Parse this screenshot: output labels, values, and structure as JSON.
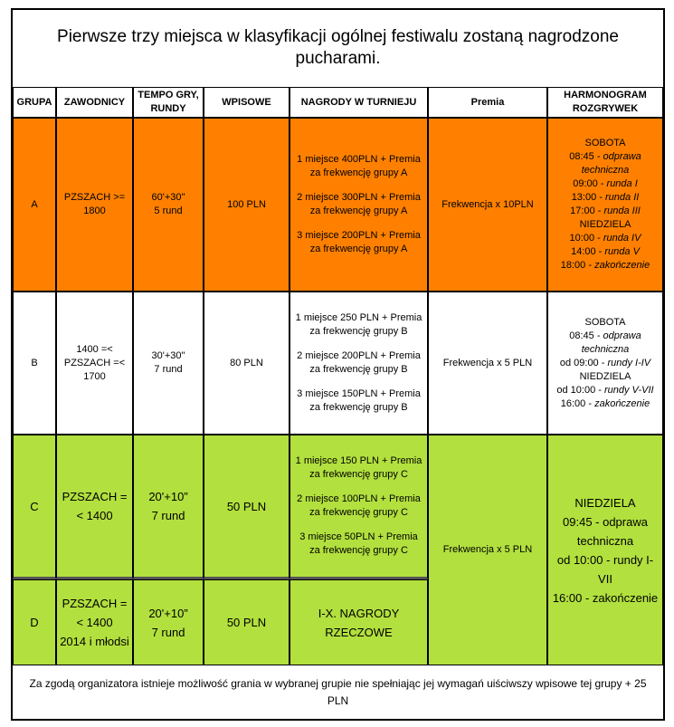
{
  "title": "Pierwsze trzy miejsca w klasyfikacji ogólnej festiwalu zostaną nagrodzone pucharami.",
  "headers": {
    "grupa": "GRUPA",
    "zawodnicy": "ZAWODNICY",
    "tempo": "TEMPO GRY, RUNDY",
    "wpisowe": "WPISOWE",
    "nagrody": "NAGRODY W TURNIEJU",
    "premia": "Premia",
    "harmonogram": "HARMONOGRAM ROZGRYWEK"
  },
  "colors": {
    "group_a": "#ff8000",
    "group_b": "#ffffff",
    "group_cd": "#b2e03e"
  },
  "rows": {
    "a": {
      "grupa": "A",
      "zawodnicy": "PZSZACH >= 1800",
      "tempo": "60'+30\"",
      "rundy": "5 rund",
      "wpisowe": "100 PLN",
      "prize1": "1 miejsce 400PLN + Premia za frekwencję grupy A",
      "prize2": "2 miejsce 300PLN + Premia za frekwencję grupy A",
      "prize3": "3 miejsce 200PLN + Premia za frekwencję grupy A",
      "premia": "Frekwencja x 10PLN",
      "sched": {
        "l1": "SOBOTA",
        "l2a": "08:45 - ",
        "l2b": "odprawa",
        "l3": "techniczna",
        "l4a": "09:00 - ",
        "l4b": "runda I",
        "l5a": "13:00 - ",
        "l5b": "runda II",
        "l6a": "17:00 - ",
        "l6b": "runda III",
        "l7": "NIEDZIELA",
        "l8a": "10:00 - ",
        "l8b": "runda IV",
        "l9a": "14:00 - ",
        "l9b": "runda V",
        "l10a": "18:00 - ",
        "l10b": "zakończenie"
      }
    },
    "b": {
      "grupa": "B",
      "zawodnicy1": "1400 =<",
      "zawodnicy2": "PZSZACH =<",
      "zawodnicy3": "1700",
      "tempo": "30'+30\"",
      "rundy": "7 rund",
      "wpisowe": "80 PLN",
      "prize1": "1 miejsce 250 PLN + Premia za frekwencję grupy B",
      "prize2": "2 miejsce 200PLN + Premia za frekwencję grupy B",
      "prize3": "3 miejsce 150PLN + Premia za frekwencję grupy B",
      "premia": "Frekwencja x 5 PLN",
      "sched": {
        "l1": "SOBOTA",
        "l2a": "08:45 - ",
        "l2b": "odprawa",
        "l3": "techniczna",
        "l4a": "od 09:00 - ",
        "l4b": "rundy I-IV",
        "l5": "NIEDZIELA",
        "l6a": "od 10:00 - ",
        "l6b": "rundy V-VII",
        "l7a": "16:00 - ",
        "l7b": "zakończenie"
      }
    },
    "c": {
      "grupa": "C",
      "zawodnicy": "PZSZACH =< 1400",
      "tempo": "20'+10”",
      "rundy": "7 rund",
      "wpisowe": "50 PLN",
      "prize1": "1 miejsce 150 PLN + Premia za frekwencję grupy C",
      "prize2": "2 miejsce 100PLN + Premia za frekwencję grupy C",
      "prize3": "3 miejsce 50PLN + Premia za frekwencję grupy C",
      "premia": "Frekwencja x 5 PLN",
      "sched": {
        "l1": "NIEDZIELA",
        "l2": "09:45 - odprawa techniczna",
        "l3": "od 10:00 - rundy I-VII",
        "l4": "16:00 - zakończenie"
      }
    },
    "d": {
      "grupa": "D",
      "zawodnicy1": "PZSZACH =< 1400",
      "zawodnicy2": "2014 i młodsi",
      "tempo": "20'+10”",
      "rundy": "7 rund",
      "wpisowe": "50 PLN",
      "nagrody": "I-X. NAGRODY RZECZOWE"
    }
  },
  "footer": "Za zgodą organizatora  istnieje możliwość grania w wybranej grupie  nie spełniając jej wymagań uiściwszy wpisowe tej grupy + 25 PLN"
}
